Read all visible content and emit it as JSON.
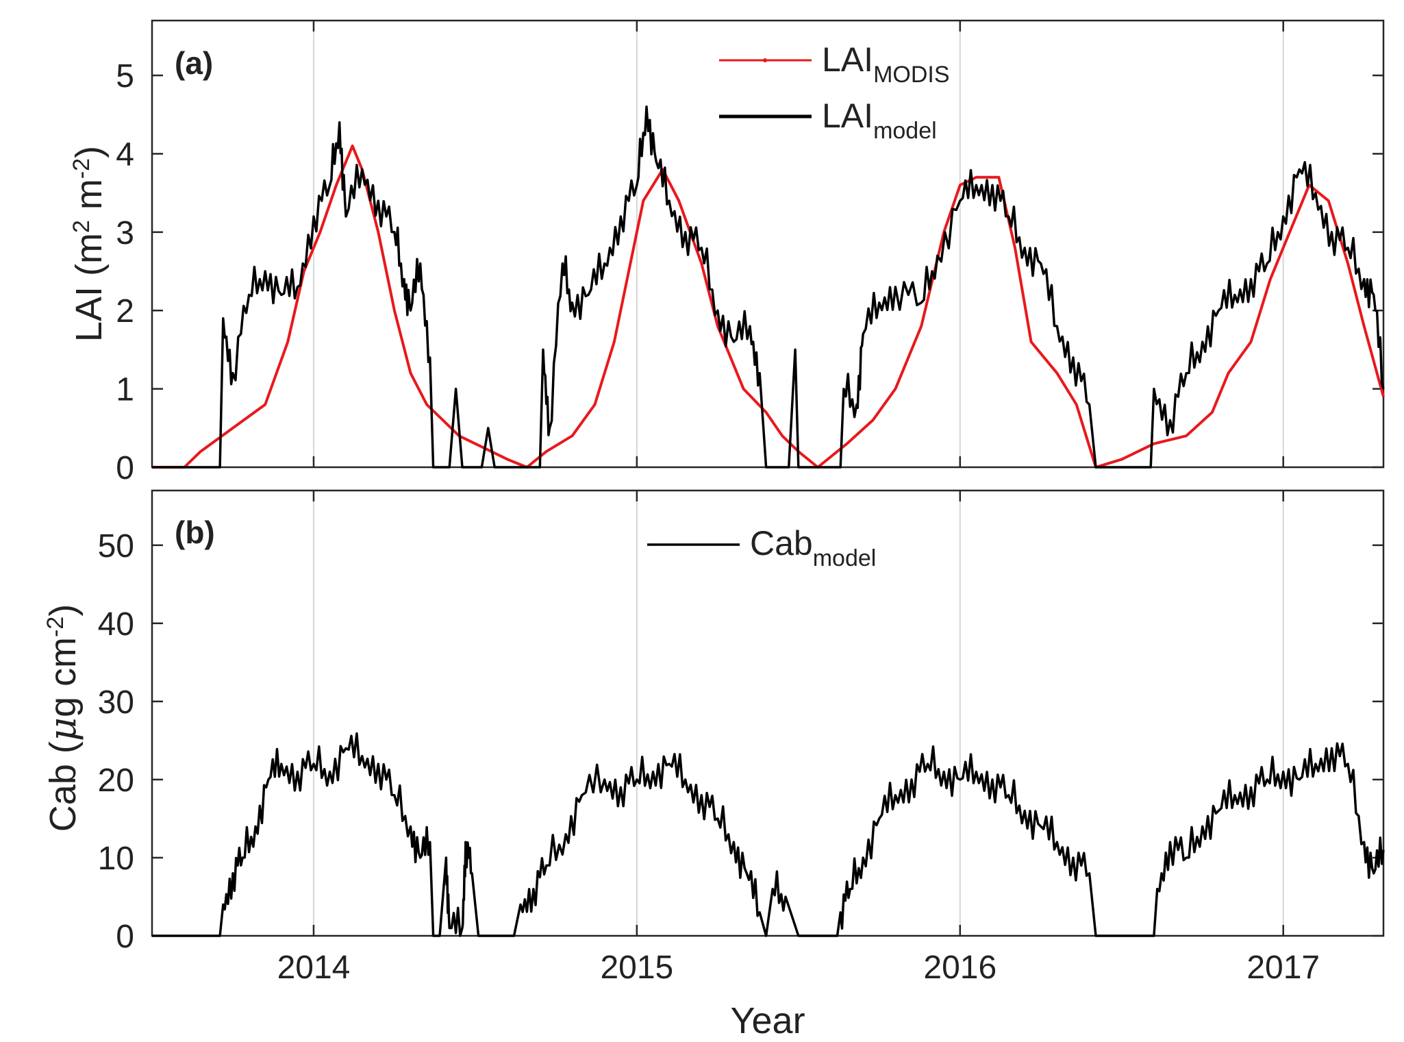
{
  "chart_data": [
    {
      "type": "line",
      "panel_label": "(a)",
      "ylabel": {
        "base": "LAI (m",
        "sup1": "2",
        "mid": " m",
        "sup2": "-2",
        "end": ")"
      },
      "ylim": [
        0,
        5.7
      ],
      "xlim": [
        2013.5,
        2017.31
      ],
      "y_ticks": [
        0,
        1,
        2,
        3,
        4,
        5
      ],
      "y_tick_labels": [
        "0",
        "1",
        "2",
        "3",
        "4",
        "5"
      ],
      "grid": "x-only",
      "legend_position": "top-center",
      "series": [
        {
          "name": "LAI_MODIS",
          "label_main": "LAI",
          "label_sub": "MODIS",
          "color": "#e8191d",
          "points": [
            [
              2013.5,
              0
            ],
            [
              2013.6,
              0
            ],
            [
              2013.65,
              0.2
            ],
            [
              2013.75,
              0.5
            ],
            [
              2013.85,
              0.8
            ],
            [
              2013.92,
              1.6
            ],
            [
              2013.97,
              2.5
            ],
            [
              2014.02,
              3.0
            ],
            [
              2014.07,
              3.6
            ],
            [
              2014.12,
              4.1
            ],
            [
              2014.15,
              3.8
            ],
            [
              2014.2,
              3.0
            ],
            [
              2014.25,
              2.0
            ],
            [
              2014.3,
              1.2
            ],
            [
              2014.35,
              0.8
            ],
            [
              2014.45,
              0.4
            ],
            [
              2014.55,
              0.2
            ],
            [
              2014.6,
              0.1
            ],
            [
              2014.66,
              0
            ],
            [
              2014.72,
              0.2
            ],
            [
              2014.8,
              0.4
            ],
            [
              2014.87,
              0.8
            ],
            [
              2014.93,
              1.6
            ],
            [
              2014.98,
              2.6
            ],
            [
              2015.02,
              3.4
            ],
            [
              2015.08,
              3.8
            ],
            [
              2015.13,
              3.4
            ],
            [
              2015.2,
              2.6
            ],
            [
              2015.25,
              1.8
            ],
            [
              2015.33,
              1.0
            ],
            [
              2015.4,
              0.7
            ],
            [
              2015.45,
              0.4
            ],
            [
              2015.5,
              0.2
            ],
            [
              2015.56,
              0
            ],
            [
              2015.65,
              0.3
            ],
            [
              2015.73,
              0.6
            ],
            [
              2015.8,
              1.0
            ],
            [
              2015.88,
              1.8
            ],
            [
              2015.95,
              3.0
            ],
            [
              2016.0,
              3.6
            ],
            [
              2016.05,
              3.7
            ],
            [
              2016.12,
              3.7
            ],
            [
              2016.17,
              2.8
            ],
            [
              2016.22,
              1.6
            ],
            [
              2016.3,
              1.2
            ],
            [
              2016.36,
              0.8
            ],
            [
              2016.42,
              0
            ],
            [
              2016.5,
              0.1
            ],
            [
              2016.6,
              0.3
            ],
            [
              2016.7,
              0.4
            ],
            [
              2016.78,
              0.7
            ],
            [
              2016.83,
              1.2
            ],
            [
              2016.9,
              1.6
            ],
            [
              2016.96,
              2.4
            ],
            [
              2017.02,
              3.0
            ],
            [
              2017.08,
              3.6
            ],
            [
              2017.14,
              3.4
            ],
            [
              2017.2,
              2.6
            ],
            [
              2017.25,
              1.8
            ],
            [
              2017.31,
              0.9
            ]
          ]
        },
        {
          "name": "LAI_model",
          "label_main": "LAI",
          "label_sub": "model",
          "color": "#000000",
          "points": [
            [
              2013.5,
              0
            ],
            [
              2013.71,
              0
            ],
            [
              2013.72,
              1.9
            ],
            [
              2013.75,
              1.2
            ],
            [
              2013.8,
              2.2
            ],
            [
              2013.85,
              2.5
            ],
            [
              2013.9,
              2.2
            ],
            [
              2013.95,
              2.3
            ],
            [
              2014.0,
              3.2
            ],
            [
              2014.05,
              3.6
            ],
            [
              2014.08,
              4.4
            ],
            [
              2014.1,
              3.2
            ],
            [
              2014.15,
              3.8
            ],
            [
              2014.2,
              3.4
            ],
            [
              2014.25,
              3.0
            ],
            [
              2014.28,
              2.4
            ],
            [
              2014.3,
              2.0
            ],
            [
              2014.33,
              2.6
            ],
            [
              2014.36,
              1.4
            ],
            [
              2014.37,
              0
            ],
            [
              2014.42,
              0
            ],
            [
              2014.44,
              1.0
            ],
            [
              2014.46,
              0
            ],
            [
              2014.52,
              0
            ],
            [
              2014.54,
              0.5
            ],
            [
              2014.56,
              0
            ],
            [
              2014.7,
              0
            ],
            [
              2014.71,
              1.5
            ],
            [
              2014.73,
              0.5
            ],
            [
              2014.77,
              2.6
            ],
            [
              2014.8,
              2.1
            ],
            [
              2014.85,
              2.2
            ],
            [
              2014.9,
              2.6
            ],
            [
              2014.95,
              3.2
            ],
            [
              2015.0,
              3.6
            ],
            [
              2015.03,
              4.6
            ],
            [
              2015.06,
              3.9
            ],
            [
              2015.1,
              3.4
            ],
            [
              2015.15,
              3.0
            ],
            [
              2015.2,
              2.8
            ],
            [
              2015.25,
              2.0
            ],
            [
              2015.3,
              1.6
            ],
            [
              2015.35,
              1.8
            ],
            [
              2015.38,
              1.2
            ],
            [
              2015.4,
              0
            ],
            [
              2015.47,
              0
            ],
            [
              2015.49,
              1.5
            ],
            [
              2015.5,
              0
            ],
            [
              2015.63,
              0
            ],
            [
              2015.64,
              1.0
            ],
            [
              2015.68,
              0.8
            ],
            [
              2015.7,
              1.7
            ],
            [
              2015.75,
              2.1
            ],
            [
              2015.8,
              2.3
            ],
            [
              2015.88,
              2.1
            ],
            [
              2015.93,
              2.7
            ],
            [
              2016.0,
              3.4
            ],
            [
              2016.05,
              3.6
            ],
            [
              2016.1,
              3.6
            ],
            [
              2016.15,
              3.2
            ],
            [
              2016.2,
              2.8
            ],
            [
              2016.25,
              2.6
            ],
            [
              2016.3,
              1.8
            ],
            [
              2016.35,
              1.4
            ],
            [
              2016.4,
              0.8
            ],
            [
              2016.42,
              0
            ],
            [
              2016.59,
              0
            ],
            [
              2016.6,
              1.0
            ],
            [
              2016.65,
              0.6
            ],
            [
              2016.7,
              1.2
            ],
            [
              2016.75,
              1.6
            ],
            [
              2016.8,
              2.0
            ],
            [
              2016.85,
              2.2
            ],
            [
              2016.9,
              2.4
            ],
            [
              2016.95,
              2.6
            ],
            [
              2017.0,
              3.2
            ],
            [
              2017.05,
              3.8
            ],
            [
              2017.1,
              3.5
            ],
            [
              2017.15,
              3.0
            ],
            [
              2017.2,
              2.8
            ],
            [
              2017.25,
              2.4
            ],
            [
              2017.28,
              2.2
            ],
            [
              2017.31,
              1.0
            ]
          ]
        }
      ]
    },
    {
      "type": "line",
      "panel_label": "(b)",
      "ylabel": {
        "base": "Cab (",
        "mu": "μ",
        "mid": "g cm",
        "sup2": "-2",
        "end": ")"
      },
      "ylim": [
        0,
        57
      ],
      "xlim": [
        2013.5,
        2017.31
      ],
      "y_ticks": [
        0,
        10,
        20,
        30,
        40,
        50
      ],
      "y_tick_labels": [
        "0",
        "10",
        "20",
        "30",
        "40",
        "50"
      ],
      "x_ticks": [
        2014,
        2015,
        2016,
        2017
      ],
      "x_tick_labels": [
        "2014",
        "2015",
        "2016",
        "2017"
      ],
      "xlabel": "Year",
      "grid": "x-only",
      "legend_position": "top-center",
      "series": [
        {
          "name": "Cab_model",
          "label_main": "Cab",
          "label_sub": "model",
          "color": "#000000",
          "points": [
            [
              2013.5,
              0
            ],
            [
              2013.71,
              0
            ],
            [
              2013.72,
              4
            ],
            [
              2013.75,
              8
            ],
            [
              2013.78,
              10
            ],
            [
              2013.82,
              14
            ],
            [
              2013.86,
              20
            ],
            [
              2013.9,
              22
            ],
            [
              2013.95,
              21
            ],
            [
              2014.0,
              22
            ],
            [
              2014.05,
              21
            ],
            [
              2014.1,
              24
            ],
            [
              2014.15,
              23
            ],
            [
              2014.2,
              22
            ],
            [
              2014.25,
              18
            ],
            [
              2014.3,
              14
            ],
            [
              2014.33,
              10
            ],
            [
              2014.36,
              12
            ],
            [
              2014.37,
              0
            ],
            [
              2014.39,
              0
            ],
            [
              2014.41,
              10
            ],
            [
              2014.42,
              1
            ],
            [
              2014.46,
              1
            ],
            [
              2014.47,
              12
            ],
            [
              2014.49,
              8
            ],
            [
              2014.51,
              0
            ],
            [
              2014.62,
              0
            ],
            [
              2014.64,
              4
            ],
            [
              2014.68,
              6
            ],
            [
              2014.72,
              9
            ],
            [
              2014.78,
              13
            ],
            [
              2014.83,
              18
            ],
            [
              2014.9,
              20
            ],
            [
              2014.95,
              19
            ],
            [
              2015.0,
              20
            ],
            [
              2015.05,
              21
            ],
            [
              2015.1,
              22
            ],
            [
              2015.15,
              20
            ],
            [
              2015.2,
              18
            ],
            [
              2015.25,
              15
            ],
            [
              2015.3,
              12
            ],
            [
              2015.34,
              8
            ],
            [
              2015.38,
              3
            ],
            [
              2015.4,
              0
            ],
            [
              2015.42,
              6
            ],
            [
              2015.46,
              5
            ],
            [
              2015.5,
              0
            ],
            [
              2015.62,
              0
            ],
            [
              2015.63,
              3
            ],
            [
              2015.66,
              6
            ],
            [
              2015.7,
              10
            ],
            [
              2015.75,
              15
            ],
            [
              2015.8,
              18
            ],
            [
              2015.85,
              20
            ],
            [
              2015.9,
              22
            ],
            [
              2015.95,
              21
            ],
            [
              2016.0,
              20
            ],
            [
              2016.05,
              21
            ],
            [
              2016.1,
              20
            ],
            [
              2016.15,
              18
            ],
            [
              2016.2,
              16
            ],
            [
              2016.25,
              14
            ],
            [
              2016.3,
              12
            ],
            [
              2016.35,
              10
            ],
            [
              2016.4,
              8
            ],
            [
              2016.42,
              0
            ],
            [
              2016.6,
              0
            ],
            [
              2016.61,
              6
            ],
            [
              2016.65,
              12
            ],
            [
              2016.7,
              10
            ],
            [
              2016.75,
              14
            ],
            [
              2016.8,
              16
            ],
            [
              2016.85,
              18
            ],
            [
              2016.9,
              19
            ],
            [
              2016.95,
              20
            ],
            [
              2017.0,
              21
            ],
            [
              2017.05,
              20
            ],
            [
              2017.1,
              22
            ],
            [
              2017.15,
              24
            ],
            [
              2017.2,
              22
            ],
            [
              2017.25,
              12
            ],
            [
              2017.28,
              8
            ],
            [
              2017.31,
              11
            ]
          ]
        }
      ]
    }
  ]
}
